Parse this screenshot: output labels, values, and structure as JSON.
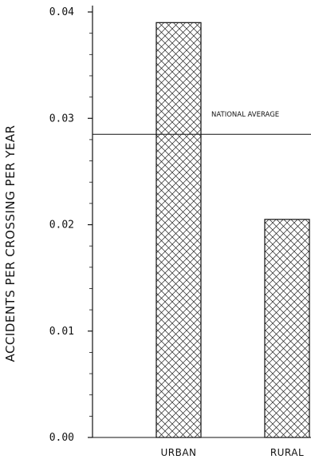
{
  "chart_data": {
    "type": "bar",
    "ylabel": "ACCIDENTS PER CROSSING PER YEAR",
    "categories": [
      "URBAN",
      "RURAL"
    ],
    "values": [
      0.039,
      0.0205
    ],
    "ylim": [
      0,
      0.04
    ],
    "yticks": [
      "0.00",
      "0.01",
      "0.02",
      "0.03",
      "0.04"
    ],
    "reference_line": {
      "label": "NATIONAL AVERAGE",
      "value": 0.0285
    },
    "bar_fill": "crosshatch",
    "grid": false
  }
}
